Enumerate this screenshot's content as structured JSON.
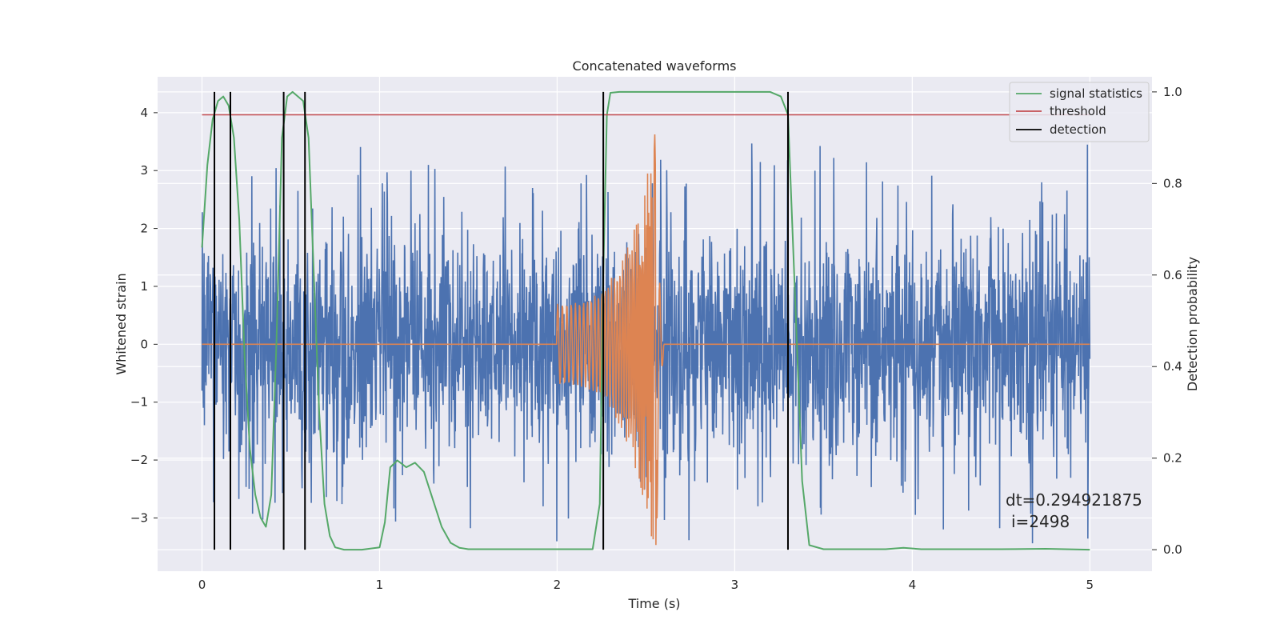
{
  "chart_data": {
    "type": "line",
    "title": "Concatenated waveforms",
    "xlabel": "Time (s)",
    "ylabel": "Whitened strain",
    "y2label": "Detection probability",
    "xlim": [
      -0.25,
      5.35
    ],
    "ylim": [
      -3.92,
      4.62
    ],
    "y2lim": [
      -0.047,
      1.033
    ],
    "x_ticks": [
      0,
      1,
      2,
      3,
      4,
      5
    ],
    "y_ticks": [
      -3,
      -2,
      -1,
      0,
      1,
      2,
      3,
      4
    ],
    "y2_ticks": [
      0.0,
      0.2,
      0.4,
      0.6,
      0.8,
      1.0
    ],
    "grid": true,
    "legend_position": "top-right",
    "colors": {
      "noise": "#4c72b0",
      "signal": "#dd8452",
      "statistics": "#55a868",
      "threshold": "#c44e52",
      "detection": "#000000",
      "background": "#eaeaf2",
      "grid": "#ffffff"
    },
    "series": [
      {
        "name": "signal statistics",
        "axis": "right",
        "x": [
          0.0,
          0.03,
          0.06,
          0.09,
          0.12,
          0.15,
          0.18,
          0.21,
          0.24,
          0.27,
          0.3,
          0.33,
          0.36,
          0.39,
          0.42,
          0.45,
          0.48,
          0.51,
          0.54,
          0.57,
          0.6,
          0.63,
          0.66,
          0.69,
          0.72,
          0.75,
          0.8,
          0.9,
          1.0,
          1.03,
          1.06,
          1.1,
          1.15,
          1.2,
          1.25,
          1.3,
          1.35,
          1.4,
          1.45,
          1.5,
          2.0,
          2.2,
          2.24,
          2.26,
          2.28,
          2.3,
          2.35,
          2.5,
          3.0,
          3.2,
          3.26,
          3.3,
          3.34,
          3.38,
          3.42,
          3.5,
          3.85,
          3.95,
          4.05,
          4.5,
          4.75,
          5.0
        ],
        "values": [
          0.66,
          0.84,
          0.94,
          0.98,
          0.99,
          0.97,
          0.9,
          0.72,
          0.42,
          0.22,
          0.12,
          0.07,
          0.05,
          0.12,
          0.46,
          0.9,
          0.99,
          1.0,
          0.99,
          0.98,
          0.9,
          0.6,
          0.3,
          0.1,
          0.03,
          0.005,
          0.0,
          0.0,
          0.005,
          0.06,
          0.18,
          0.195,
          0.18,
          0.19,
          0.17,
          0.11,
          0.05,
          0.015,
          0.004,
          0.001,
          0.001,
          0.001,
          0.1,
          0.6,
          0.95,
          0.998,
          1.0,
          1.0,
          1.0,
          1.0,
          0.99,
          0.95,
          0.55,
          0.15,
          0.01,
          0.001,
          0.001,
          0.004,
          0.001,
          0.001,
          0.002,
          0.0
        ]
      },
      {
        "name": "threshold",
        "axis": "right",
        "x": [
          0.0,
          5.0
        ],
        "values": [
          0.95,
          0.95
        ]
      },
      {
        "name": "detection",
        "axis": "right",
        "vlines_x": [
          0.07,
          0.16,
          0.46,
          0.58,
          2.26,
          3.3
        ],
        "vlines_range": [
          0.0,
          1.0
        ]
      }
    ],
    "noise_envelope": {
      "x_range": [
        0.0,
        5.0
      ],
      "typical_amplitude": 1.3,
      "peak_amplitude": 3.5
    },
    "signal_chirp": {
      "x_start": 2.0,
      "x_peak": 2.56,
      "x_end": 2.6,
      "start_amplitude": 0.7,
      "peak_amplitude": 3.8
    },
    "annotation": {
      "line1": "dt=0.294921875",
      "line2": "i=2498"
    }
  }
}
